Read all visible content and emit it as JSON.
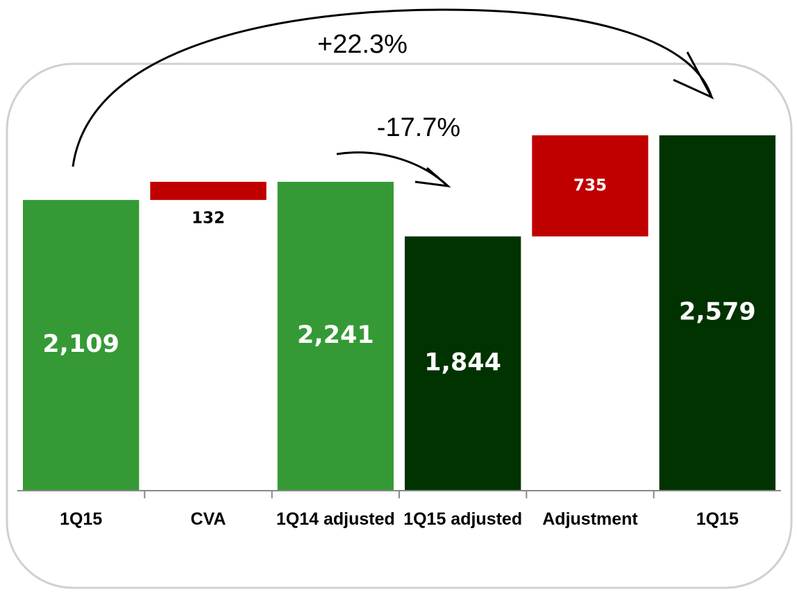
{
  "chart_data": {
    "type": "waterfall",
    "categories": [
      "1Q15",
      "CVA",
      "1Q14 adjusted",
      "1Q15 adjusted",
      "Adjustment",
      "1Q15"
    ],
    "values": [
      2109,
      132,
      2241,
      1844,
      735,
      2579
    ],
    "value_labels": [
      "2,109",
      "132",
      "2,241",
      "1,844",
      "735",
      "2,579"
    ],
    "measure": [
      "absolute",
      "relative",
      "absolute",
      "absolute",
      "relative",
      "absolute"
    ],
    "colors": [
      "#359a35",
      "#c00000",
      "#359a35",
      "#003300",
      "#c00000",
      "#003300"
    ],
    "annotations": [
      "+22.3%",
      "-17.7%"
    ]
  }
}
